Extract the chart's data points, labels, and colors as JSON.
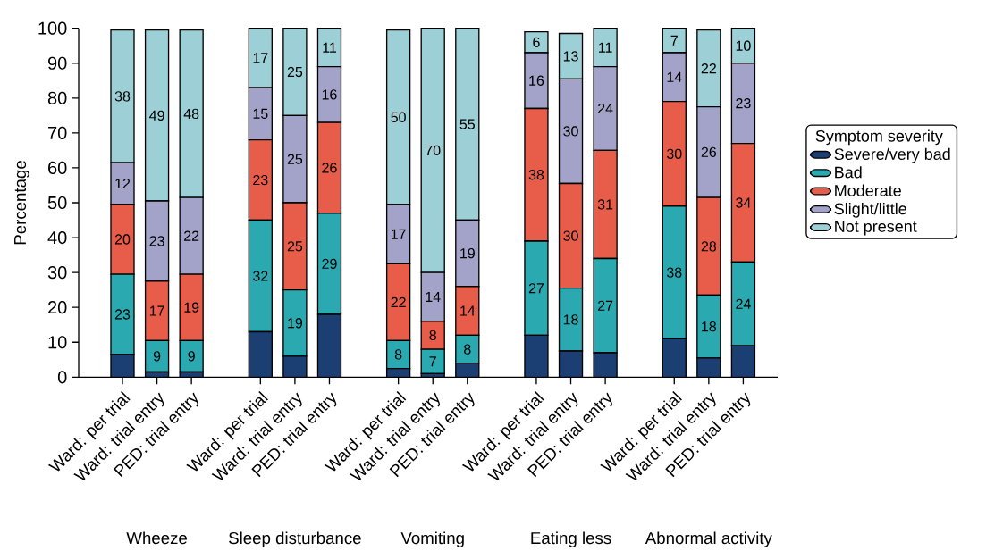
{
  "chart_data": {
    "type": "bar",
    "stacked": true,
    "ylabel": "Percentage",
    "legend_title": "Symptom severity",
    "legend": "right",
    "grid": false,
    "categories": [
      "Ward: per trial",
      "Ward: trial entry",
      "PED: trial entry",
      null,
      "Ward: per trial",
      "Ward: trial entry",
      "PED: trial entry",
      null,
      "Ward: per trial",
      "Ward: trial entry",
      "PED: trial entry",
      null,
      "Ward: per trial",
      "Ward: trial entry",
      "PED: trial entry",
      null,
      "Ward: per trial",
      "Ward: trial entry",
      "PED: trial entry"
    ],
    "annotations": [
      "Wheeze",
      "Sleep disturbance",
      "Vomiting",
      "Eating less",
      "Abnormal activity"
    ],
    "ylim": [
      0,
      100
    ],
    "yticks": [
      0,
      10,
      20,
      30,
      40,
      50,
      60,
      70,
      80,
      90,
      100
    ],
    "series": [
      {
        "name": "Severe/very bad",
        "color": "#1c3f73",
        "values": [
          6.5,
          1.5,
          1.5,
          null,
          13,
          6,
          18,
          null,
          2.5,
          1,
          4,
          null,
          12,
          7.5,
          7,
          null,
          11,
          5.5,
          9
        ]
      },
      {
        "name": "Bad",
        "color": "#2aa9b0",
        "values": [
          23,
          9,
          9,
          null,
          32,
          19,
          29,
          null,
          8,
          7,
          8,
          null,
          27,
          18,
          27,
          null,
          38,
          18,
          24
        ],
        "value_labels": [
          "23",
          "9",
          "9",
          null,
          "32",
          "19",
          "29",
          null,
          "8",
          "7",
          "8",
          null,
          "27",
          "18",
          "27",
          null,
          "38",
          "18",
          "24"
        ]
      },
      {
        "name": "Moderate",
        "color": "#e85c4a",
        "values": [
          20,
          17,
          19,
          null,
          23,
          25,
          26,
          null,
          22,
          8,
          14,
          null,
          38,
          30,
          31,
          null,
          30,
          28,
          34
        ],
        "value_labels": [
          "20",
          "17",
          "19",
          null,
          "23",
          "25",
          "26",
          null,
          "22",
          "8",
          "14",
          null,
          "38",
          "30",
          "31",
          null,
          "30",
          "28",
          "34"
        ]
      },
      {
        "name": "Slight/little",
        "color": "#a3a3c9",
        "values": [
          12,
          23,
          22,
          null,
          15,
          25,
          16,
          null,
          17,
          14,
          19,
          null,
          16,
          30,
          24,
          null,
          14,
          26,
          23
        ],
        "value_labels": [
          "12",
          "23",
          "22",
          null,
          "15",
          "25",
          "16",
          null,
          "17",
          "14",
          "19",
          null,
          "16",
          "30",
          "24",
          null,
          "14",
          "26",
          "23"
        ]
      },
      {
        "name": "Not present",
        "color": "#9dd0d6",
        "values": [
          38,
          49,
          48,
          null,
          17,
          25,
          11,
          null,
          50,
          70,
          55,
          null,
          6,
          13,
          11,
          null,
          7,
          22,
          10
        ],
        "value_labels": [
          "38",
          "49",
          "48",
          null,
          "17",
          "25",
          "11",
          null,
          "50",
          "70",
          "55",
          null,
          "6",
          "13",
          "11",
          null,
          "7",
          "22",
          "10"
        ]
      }
    ]
  }
}
